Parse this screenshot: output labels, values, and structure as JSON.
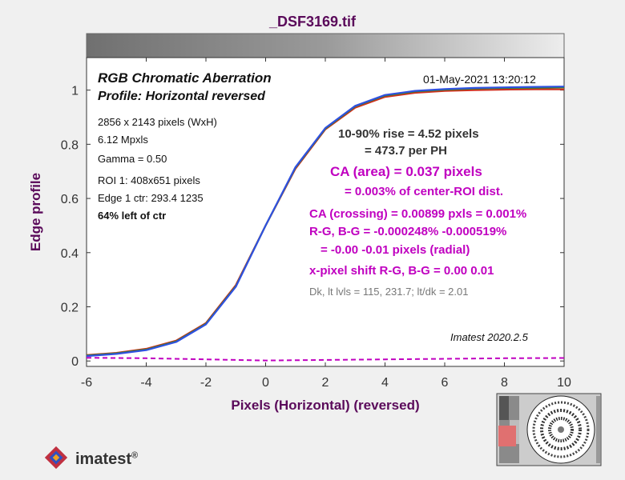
{
  "window_title": "_DSF3169.tif",
  "header": {
    "title": "RGB Chromatic Aberration",
    "profile": "Profile: Horizontal reversed",
    "date": "01-May-2021 13:20:12"
  },
  "info": [
    "2856 x 2143 pixels (WxH)",
    "6.12 Mpxls",
    "Gamma = 0.50",
    "ROI 1: 408x651 pixels",
    "Edge 1 ctr: 293.4  1235",
    "64% left of ctr"
  ],
  "results": {
    "rise": "10-90% rise = 4.52 pixels",
    "per_ph": "= 473.7 per PH",
    "ca_area": "CA (area) = 0.037 pixels",
    "ca_center": "= 0.003% of center-ROI dist.",
    "ca_crossing": "CA (crossing) = 0.00899 pxls = 0.001%",
    "rg_bg": "R-G, B-G = -0.000248%  -0.000519%",
    "radial": "= -0.00  -0.01 pixels (radial)",
    "xshift": "x-pixel shift R-G, B-G = 0.00  0.01",
    "levels": "Dk, lt lvls = 115, 231.7;  lt/dk = 2.01"
  },
  "version": "Imatest 2020.2.5",
  "logo": {
    "text": "imatest",
    "mark": "®"
  },
  "colors": {
    "title": "#5a0a5a",
    "red": "#d03020",
    "green": "#2a8a2a",
    "blue": "#3050e0",
    "magenta": "#c000c0"
  },
  "chart_data": {
    "type": "line",
    "xlabel": "Pixels (Horizontal)   (reversed)",
    "ylabel": "Edge profile",
    "xlim": [
      -6,
      10
    ],
    "ylim": [
      -0.02,
      1.12
    ],
    "xticks": [
      -6,
      -4,
      -2,
      0,
      2,
      4,
      6,
      8,
      10
    ],
    "yticks": [
      0,
      0.2,
      0.4,
      0.6,
      0.8,
      1
    ],
    "xtick_labels": [
      "-6",
      "-4",
      "-2",
      "0",
      "2",
      "4",
      "6",
      "8",
      "10"
    ],
    "ytick_labels": [
      "0",
      "0.2",
      "0.4",
      "0.6",
      "0.8",
      "1"
    ],
    "grid": false,
    "series": [
      {
        "color": "red",
        "x": [
          -6,
          -5,
          -4,
          -3,
          -2,
          -1,
          0,
          1,
          2,
          3,
          4,
          5,
          6,
          7,
          8,
          9,
          10
        ],
        "y": [
          0.022,
          0.03,
          0.045,
          0.075,
          0.14,
          0.28,
          0.5,
          0.71,
          0.855,
          0.935,
          0.975,
          0.99,
          0.997,
          1.0,
          1.002,
          1.003,
          1.003
        ]
      },
      {
        "color": "green",
        "x": [
          -6,
          -5,
          -4,
          -3,
          -2,
          -1,
          0,
          1,
          2,
          3,
          4,
          5,
          6,
          7,
          8,
          9,
          10
        ],
        "y": [
          0.02,
          0.028,
          0.042,
          0.072,
          0.137,
          0.276,
          0.5,
          0.714,
          0.858,
          0.94,
          0.98,
          0.995,
          1.002,
          1.006,
          1.008,
          1.009,
          1.01
        ]
      },
      {
        "color": "blue",
        "x": [
          -6,
          -5,
          -4,
          -3,
          -2,
          -1,
          0,
          1,
          2,
          3,
          4,
          5,
          6,
          7,
          8,
          9,
          10
        ],
        "y": [
          0.018,
          0.026,
          0.04,
          0.07,
          0.135,
          0.274,
          0.5,
          0.716,
          0.86,
          0.942,
          0.982,
          0.997,
          1.004,
          1.008,
          1.01,
          1.012,
          1.013
        ]
      },
      {
        "color": "magenta",
        "style": "dashed",
        "x": [
          -6,
          -4,
          -2,
          0,
          2,
          4,
          6,
          8,
          10
        ],
        "y": [
          0.012,
          0.01,
          0.006,
          0.002,
          0.004,
          0.006,
          0.008,
          0.01,
          0.011
        ]
      }
    ]
  }
}
